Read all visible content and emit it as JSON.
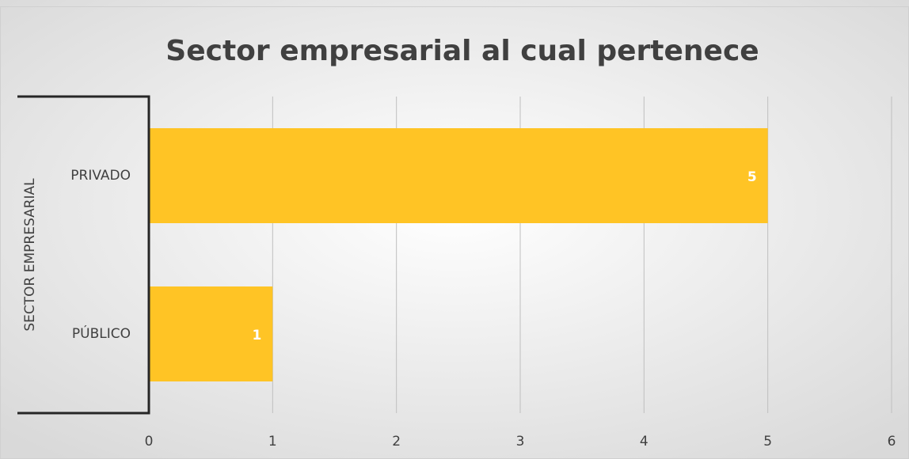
{
  "chart_data": {
    "type": "bar",
    "orientation": "horizontal",
    "title": "Sector empresarial al cual pertenece",
    "y_axis_label": "SECTOR EMPRESARIAL",
    "categories": [
      "PRIVADO",
      "PÚBLICO"
    ],
    "values": [
      5,
      1
    ],
    "color": "#ffc425",
    "xlim": [
      0,
      6
    ],
    "xticks": [
      0,
      1,
      2,
      3,
      4,
      5,
      6
    ],
    "grid": true
  }
}
